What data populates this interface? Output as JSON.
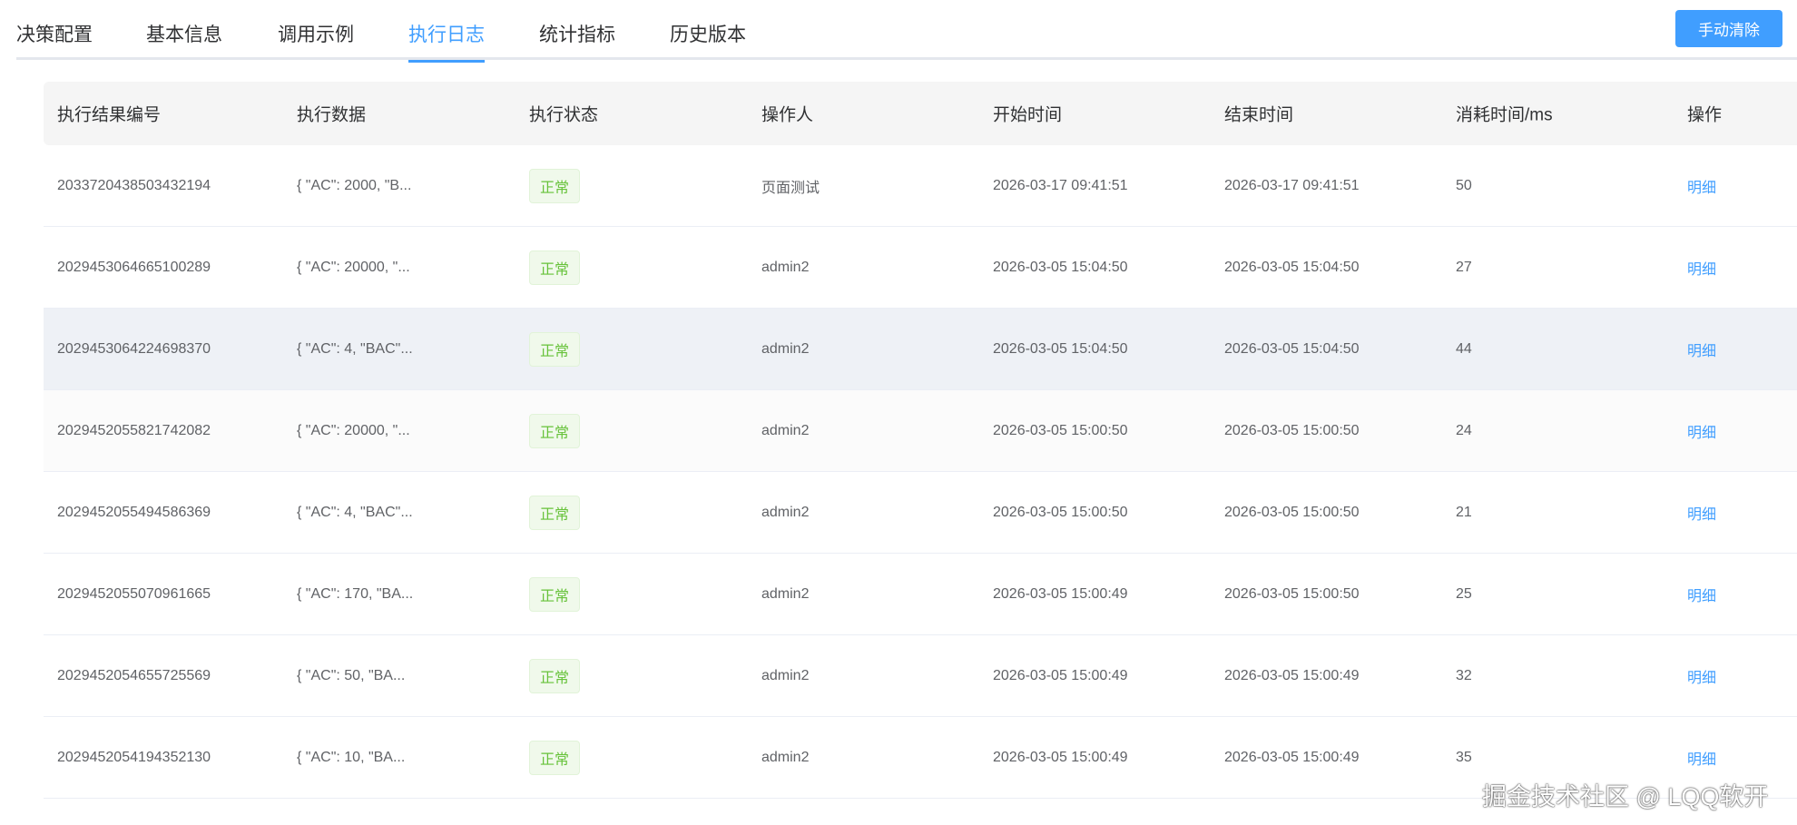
{
  "tabs": [
    {
      "label": "决策配置"
    },
    {
      "label": "基本信息"
    },
    {
      "label": "调用示例"
    },
    {
      "label": "执行日志",
      "active": true
    },
    {
      "label": "统计指标"
    },
    {
      "label": "历史版本"
    }
  ],
  "toolbar": {
    "clear_label": "手动清除"
  },
  "colors": {
    "accent": "#409eff",
    "success": "#67c23a"
  },
  "table": {
    "headers": [
      "执行结果编号",
      "执行数据",
      "执行状态",
      "操作人",
      "开始时间",
      "结束时间",
      "消耗时间/ms",
      "操作"
    ],
    "rows": [
      {
        "id": "2033720438503432194",
        "data": "{ \"AC\": 2000, \"B...",
        "status": "正常",
        "operator": "页面测试",
        "start": "2026-03-17 09:41:51",
        "end": "2026-03-17 09:41:51",
        "cost": "50",
        "action": "明细"
      },
      {
        "id": "2029453064665100289",
        "data": "{ \"AC\": 20000, \"...",
        "status": "正常",
        "operator": "admin2",
        "start": "2026-03-05 15:04:50",
        "end": "2026-03-05 15:04:50",
        "cost": "27",
        "action": "明细"
      },
      {
        "id": "2029453064224698370",
        "data": "{ \"AC\": 4, \"BAC\"...",
        "status": "正常",
        "operator": "admin2",
        "start": "2026-03-05 15:04:50",
        "end": "2026-03-05 15:04:50",
        "cost": "44",
        "action": "明细"
      },
      {
        "id": "2029452055821742082",
        "data": "{ \"AC\": 20000, \"...",
        "status": "正常",
        "operator": "admin2",
        "start": "2026-03-05 15:00:50",
        "end": "2026-03-05 15:00:50",
        "cost": "24",
        "action": "明细"
      },
      {
        "id": "2029452055494586369",
        "data": "{ \"AC\": 4, \"BAC\"...",
        "status": "正常",
        "operator": "admin2",
        "start": "2026-03-05 15:00:50",
        "end": "2026-03-05 15:00:50",
        "cost": "21",
        "action": "明细"
      },
      {
        "id": "2029452055070961665",
        "data": "{ \"AC\": 170, \"BA...",
        "status": "正常",
        "operator": "admin2",
        "start": "2026-03-05 15:00:49",
        "end": "2026-03-05 15:00:50",
        "cost": "25",
        "action": "明细"
      },
      {
        "id": "2029452054655725569",
        "data": "{ \"AC\": 50, \"BA...",
        "status": "正常",
        "operator": "admin2",
        "start": "2026-03-05 15:00:49",
        "end": "2026-03-05 15:00:49",
        "cost": "32",
        "action": "明细"
      },
      {
        "id": "2029452054194352130",
        "data": "{ \"AC\": 10, \"BA...",
        "status": "正常",
        "operator": "admin2",
        "start": "2026-03-05 15:00:49",
        "end": "2026-03-05 15:00:49",
        "cost": "35",
        "action": "明细"
      }
    ]
  },
  "watermark": "掘金技术社区 @ LQQ软开"
}
